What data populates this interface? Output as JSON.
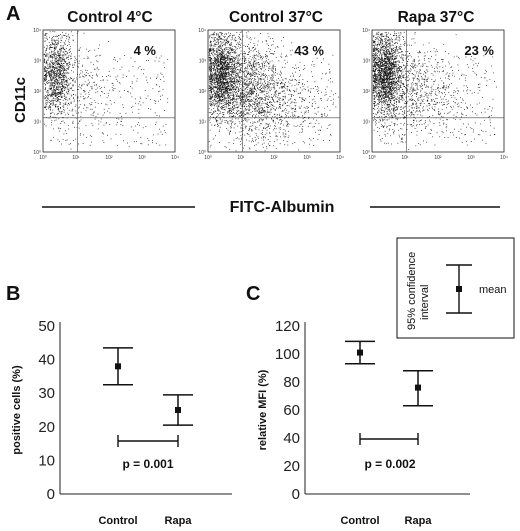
{
  "panel_letters": [
    "A",
    "B",
    "C"
  ],
  "flow": {
    "panels": [
      {
        "title": "Control 4°C",
        "percent": "4 %",
        "density": "low"
      },
      {
        "title": "Control 37°C",
        "percent": "43 %",
        "density": "high"
      },
      {
        "title": "Rapa 37°C",
        "percent": "23 %",
        "density": "medium"
      }
    ],
    "ylabel": "CD11c",
    "xlabel": "FITC-Albumin",
    "tick_labels": [
      "10⁰",
      "10¹",
      "10²",
      "10³",
      "10⁴"
    ]
  },
  "legend": {
    "interval_label_line1": "95% confidence",
    "interval_label_line2": "interval",
    "mean_label": "mean"
  },
  "chart_data": [
    {
      "type": "errorbar",
      "panel": "B",
      "title": "",
      "xlabel": "",
      "ylabel": "positive cells (%)",
      "categories": [
        "Control",
        "Rapa"
      ],
      "series": [
        {
          "mean": [
            38,
            25
          ],
          "lower": [
            32.5,
            20.5
          ],
          "upper": [
            43.5,
            29.5
          ]
        }
      ],
      "ylim": [
        0,
        50
      ],
      "yticks": [
        0,
        10,
        20,
        30,
        40,
        50
      ],
      "annotation": "p = 0.001",
      "grid": false
    },
    {
      "type": "errorbar",
      "panel": "C",
      "title": "",
      "xlabel": "",
      "ylabel": "relative MFI  (%)",
      "categories": [
        "Control",
        "Rapa"
      ],
      "series": [
        {
          "mean": [
            101,
            76
          ],
          "lower": [
            93,
            63
          ],
          "upper": [
            109,
            88
          ]
        }
      ],
      "ylim": [
        0,
        120
      ],
      "yticks": [
        0,
        20,
        40,
        60,
        80,
        100,
        120
      ],
      "annotation": "p = 0.002",
      "grid": false
    }
  ]
}
